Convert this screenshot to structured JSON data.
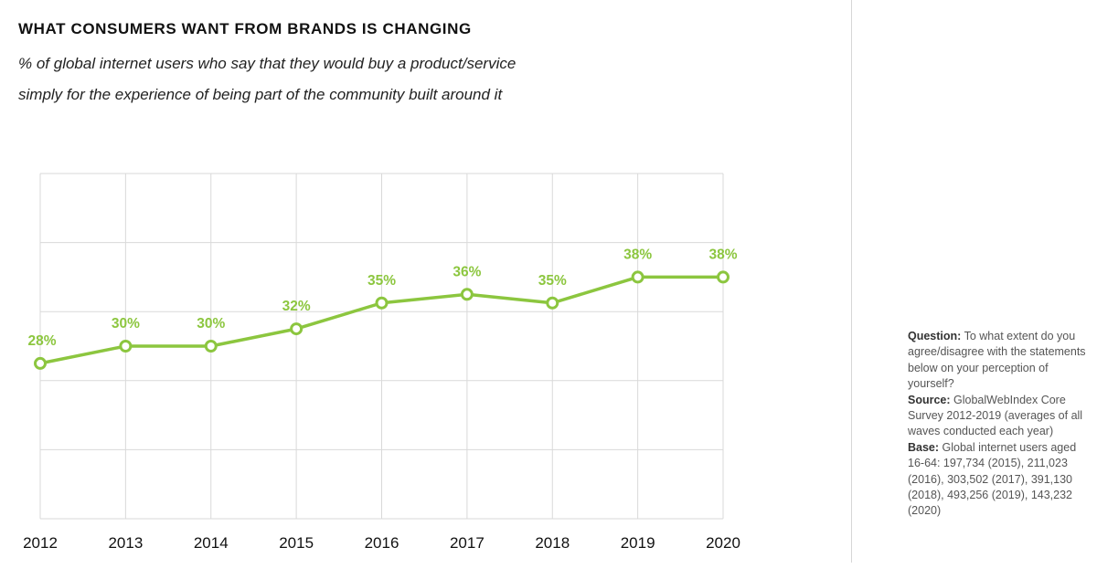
{
  "title": "WHAT CONSUMERS WANT FROM BRANDS IS CHANGING",
  "subtitle_line1": "% of global internet users who say that they would buy a product/service",
  "subtitle_line2": "simply for the experience of being part of the community built around it",
  "colors": {
    "line": "#8cc63f",
    "grid": "#d9d9d9",
    "axis_text": "#111111"
  },
  "chart_data": {
    "type": "line",
    "title": "WHAT CONSUMERS WANT FROM BRANDS IS CHANGING",
    "xlabel": "",
    "ylabel": "",
    "categories": [
      "2012",
      "2013",
      "2014",
      "2015",
      "2016",
      "2017",
      "2018",
      "2019",
      "2020"
    ],
    "series": [
      {
        "name": "% of global internet users",
        "values": [
          28,
          30,
          30,
          32,
          35,
          36,
          35,
          38,
          38
        ],
        "labels": [
          "28%",
          "30%",
          "30%",
          "32%",
          "35%",
          "36%",
          "35%",
          "38%",
          "38%"
        ]
      }
    ],
    "ylim": [
      10,
      50
    ],
    "grid": true,
    "legend": "none"
  },
  "notes": {
    "question_label": "Question:",
    "question_text": "To what extent do you agree/disagree with the statements below on your perception of yourself?",
    "source_label": "Source:",
    "source_text": "GlobalWebIndex Core Survey 2012-2019 (averages of all waves conducted each year)",
    "base_label": "Base:",
    "base_text": "Global internet users aged 16-64: 197,734 (2015), 211,023 (2016), 303,502 (2017), 391,130 (2018), 493,256 (2019), 143,232 (2020)"
  }
}
